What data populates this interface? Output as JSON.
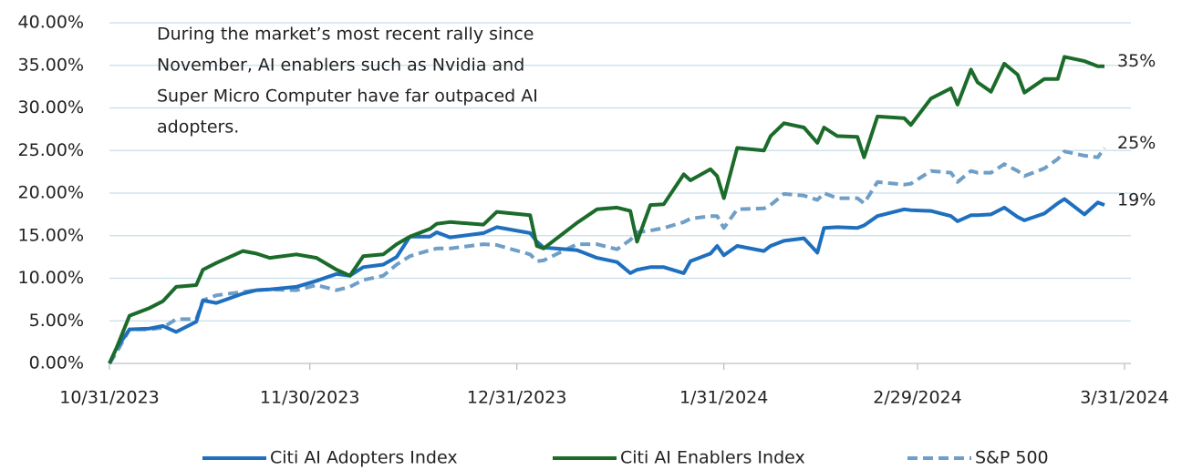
{
  "chart_data": {
    "type": "line",
    "annotation": [
      "During the market’s most recent rally since",
      "November, AI enablers such as Nvidia and",
      "Super Micro Computer have far outpaced AI",
      "adopters."
    ],
    "x": [
      "10/31/2023",
      "11/1/2023",
      "11/3/2023",
      "11/6/2023",
      "11/8/2023",
      "11/10/2023",
      "11/13/2023",
      "11/14/2023",
      "11/16/2023",
      "11/20/2023",
      "11/22/2023",
      "11/24/2023",
      "11/28/2023",
      "12/1/2023",
      "12/4/2023",
      "12/6/2023",
      "12/8/2023",
      "12/11/2023",
      "12/13/2023",
      "12/15/2023",
      "12/18/2023",
      "12/19/2023",
      "12/21/2023",
      "12/26/2023",
      "12/28/2023",
      "1/2/2024",
      "1/3/2024",
      "1/4/2024",
      "1/9/2024",
      "1/12/2024",
      "1/15/2024",
      "1/17/2024",
      "1/18/2024",
      "1/20/2024",
      "1/22/2024",
      "1/25/2024",
      "1/26/2024",
      "1/29/2024",
      "1/30/2024",
      "1/31/2024",
      "2/2/2024",
      "2/6/2024",
      "2/7/2024",
      "2/9/2024",
      "2/12/2024",
      "2/14/2024",
      "2/15/2024",
      "2/17/2024",
      "2/20/2024",
      "2/21/2024",
      "2/23/2024",
      "2/27/2024",
      "2/28/2024",
      "3/2/2024",
      "3/5/2024",
      "3/6/2024",
      "3/8/2024",
      "3/9/2024",
      "3/11/2024",
      "3/13/2024",
      "3/15/2024",
      "3/16/2024",
      "3/19/2024",
      "3/21/2024",
      "3/22/2024",
      "3/25/2024",
      "3/27/2024",
      "3/28/2024"
    ],
    "series": [
      {
        "name": "Citi AI Adopters Index",
        "color": "#1f6fbf",
        "dashed": false,
        "end_label": "19%",
        "values": [
          0,
          1.7,
          4.0,
          4.1,
          4.4,
          3.7,
          4.9,
          7.4,
          7.1,
          8.2,
          8.6,
          8.7,
          9.0,
          9.7,
          10.5,
          10.3,
          11.3,
          11.6,
          12.5,
          14.9,
          14.9,
          15.4,
          14.8,
          15.3,
          16.0,
          15.3,
          14.3,
          13.6,
          13.3,
          12.4,
          11.9,
          10.6,
          11.0,
          11.3,
          11.3,
          10.6,
          12.0,
          12.9,
          13.8,
          12.7,
          13.8,
          13.2,
          13.8,
          14.4,
          14.7,
          13.0,
          15.9,
          16.0,
          15.9,
          16.2,
          17.3,
          18.1,
          18.0,
          17.9,
          17.3,
          16.7,
          17.4,
          17.4,
          17.5,
          18.3,
          17.2,
          16.8,
          17.6,
          18.8,
          19.3,
          17.5,
          18.9,
          18.6
        ]
      },
      {
        "name": "Citi AI Enablers Index",
        "color": "#1b6b2b",
        "dashed": false,
        "end_label": "35%",
        "values": [
          0,
          1.7,
          5.6,
          6.5,
          7.3,
          9.0,
          9.2,
          11.0,
          11.8,
          13.2,
          12.9,
          12.4,
          12.8,
          12.4,
          11.0,
          10.3,
          12.6,
          12.8,
          14.0,
          14.9,
          15.8,
          16.4,
          16.6,
          16.3,
          17.8,
          17.4,
          13.8,
          13.5,
          16.5,
          18.1,
          18.3,
          17.9,
          14.3,
          18.6,
          18.7,
          22.2,
          21.5,
          22.8,
          22.0,
          19.4,
          25.3,
          25.0,
          26.7,
          28.2,
          27.7,
          25.9,
          27.7,
          26.7,
          26.6,
          24.2,
          29.0,
          28.8,
          28.0,
          31.1,
          32.3,
          30.4,
          34.5,
          33.0,
          31.9,
          35.2,
          33.9,
          31.8,
          33.4,
          33.4,
          36.0,
          35.5,
          34.9,
          34.9
        ]
      },
      {
        "name": "S&P 500",
        "color": "#6f9ec6",
        "dashed": true,
        "end_label": "25%",
        "values": [
          0,
          1.2,
          4.0,
          4.0,
          4.2,
          5.2,
          5.2,
          7.4,
          8.0,
          8.4,
          8.6,
          8.7,
          8.6,
          9.2,
          8.6,
          9.0,
          9.8,
          10.3,
          11.6,
          12.6,
          13.3,
          13.5,
          13.5,
          14.0,
          13.9,
          12.8,
          12.0,
          12.1,
          14.0,
          14.0,
          13.4,
          14.5,
          15.4,
          15.6,
          15.9,
          16.6,
          17.0,
          17.3,
          17.3,
          15.9,
          18.1,
          18.2,
          18.6,
          19.9,
          19.7,
          19.2,
          20.0,
          19.4,
          19.4,
          18.8,
          21.3,
          21.0,
          21.1,
          22.6,
          22.4,
          21.3,
          22.6,
          22.4,
          22.4,
          23.4,
          22.6,
          22.0,
          22.9,
          24.0,
          24.9,
          24.4,
          24.2,
          25.3
        ]
      }
    ],
    "xlim": [
      "10/31/2023",
      "3/31/2024"
    ],
    "xticks": [
      "10/31/2023",
      "11/30/2023",
      "12/31/2023",
      "1/31/2024",
      "2/29/2024",
      "3/31/2024"
    ],
    "ylim": [
      0,
      40
    ],
    "yticks": [
      {
        "value": 0,
        "label": "0.00%"
      },
      {
        "value": 5,
        "label": "5.00%"
      },
      {
        "value": 10,
        "label": "10.00%"
      },
      {
        "value": 15,
        "label": "15.00%"
      },
      {
        "value": 20,
        "label": "20.00%"
      },
      {
        "value": 25,
        "label": "25.00%"
      },
      {
        "value": 30,
        "label": "30.00%"
      },
      {
        "value": 35,
        "label": "35.00%"
      },
      {
        "value": 40,
        "label": "40.00%"
      }
    ],
    "grid": true,
    "legend": "bottom"
  }
}
